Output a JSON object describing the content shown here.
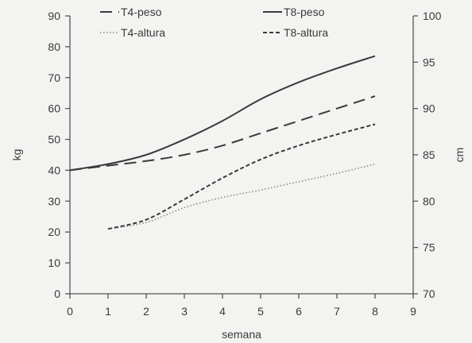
{
  "chart_data": {
    "type": "line",
    "title": "",
    "xlabel": "semana",
    "ylabel_left": "kg",
    "ylabel_right": "cm",
    "xlim": [
      0,
      9
    ],
    "ylim_left": [
      0,
      90
    ],
    "ylim_right": [
      70,
      100
    ],
    "x_ticks": [
      "0",
      "1",
      "2",
      "3",
      "4",
      "5",
      "6",
      "7",
      "8",
      "9"
    ],
    "y_left_ticks": [
      "0",
      "10",
      "20",
      "30",
      "40",
      "50",
      "60",
      "70",
      "80",
      "90"
    ],
    "y_right_ticks": [
      "70",
      "75",
      "80",
      "85",
      "90",
      "95",
      "100"
    ],
    "grid": false,
    "legend_placement": "top",
    "series": [
      {
        "name": "T4-peso",
        "axis": "left",
        "style": "long-dash",
        "color": "#3a3a3a",
        "x": [
          0,
          1,
          2,
          3,
          4,
          5,
          6,
          7,
          8
        ],
        "values": [
          40,
          41.5,
          43,
          45,
          48,
          52,
          56,
          60,
          64
        ]
      },
      {
        "name": "T8-peso",
        "axis": "left",
        "style": "solid",
        "color": "#3a3a3a",
        "x": [
          0,
          1,
          2,
          3,
          4,
          5,
          6,
          7,
          8
        ],
        "values": [
          40,
          42,
          45,
          50,
          56,
          63,
          68.5,
          73,
          77
        ]
      },
      {
        "name": "T4-altura",
        "axis": "right",
        "style": "dotted",
        "color": "#8a8a8a",
        "x": [
          1,
          2,
          3,
          4,
          5,
          6,
          7,
          8
        ],
        "values": [
          77,
          77.7,
          79.3,
          80.4,
          81.2,
          82.1,
          83,
          84
        ]
      },
      {
        "name": "T8-altura",
        "axis": "right",
        "style": "short-dash",
        "color": "#3a3a3a",
        "x": [
          1,
          2,
          3,
          4,
          5,
          6,
          7,
          8
        ],
        "values": [
          77,
          78,
          80.2,
          82.5,
          84.5,
          86,
          87.2,
          88.3
        ]
      }
    ]
  }
}
